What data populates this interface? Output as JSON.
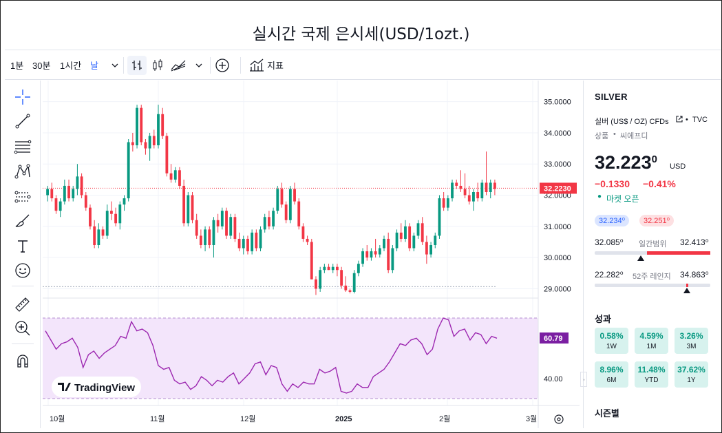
{
  "title": "실시간 국제 은시세(USD/1ozt.)",
  "toolbar": {
    "intervals": [
      "1분",
      "30분",
      "1시간",
      "날"
    ],
    "indicators_label": "지표"
  },
  "left_tools": [
    "crosshair-icon",
    "trendline-icon",
    "fib-icon",
    "pattern-icon",
    "forecast-icon",
    "brush-icon",
    "text-icon",
    "emoji-icon",
    "ruler-icon",
    "zoom-in-icon",
    "magnet-icon"
  ],
  "chart": {
    "price_axis": [
      "35.0000",
      "34.0000",
      "33.0000",
      "32.0000",
      "31.0000",
      "30.0000",
      "29.0000"
    ],
    "current_price_label": "32.2230",
    "rsi_axis": "40.00",
    "rsi_value_label": "60.79",
    "time_axis": [
      "10월",
      "11월",
      "12월",
      "2025",
      "2월",
      "3월"
    ],
    "watermark": "TradingView",
    "colors": {
      "up": "#089981",
      "down": "#f23645",
      "rsi": "#7e22ce",
      "rsi_band": "#f3e5fb",
      "price_line": "#f23645"
    }
  },
  "chart_data": {
    "type": "candlestick",
    "ylim": [
      28.7,
      35.5
    ],
    "ticks": [
      35,
      34,
      33,
      32,
      31,
      30,
      29
    ],
    "last_price": 32.223,
    "ohlc": [
      [
        32.0,
        32.3,
        31.8,
        32.2
      ],
      [
        32.2,
        32.4,
        31.8,
        31.9
      ],
      [
        31.9,
        32.0,
        31.4,
        31.5
      ],
      [
        31.5,
        31.9,
        31.3,
        31.8
      ],
      [
        31.8,
        32.5,
        31.7,
        32.3
      ],
      [
        32.3,
        32.5,
        31.8,
        31.9
      ],
      [
        31.9,
        32.3,
        31.8,
        32.2
      ],
      [
        32.2,
        33.0,
        32.0,
        32.6
      ],
      [
        32.6,
        32.7,
        31.9,
        32.0
      ],
      [
        32.0,
        32.1,
        31.5,
        31.6
      ],
      [
        31.6,
        31.7,
        30.9,
        31.0
      ],
      [
        31.0,
        31.2,
        30.3,
        30.4
      ],
      [
        30.4,
        31.1,
        30.3,
        30.9
      ],
      [
        30.9,
        31.0,
        30.6,
        30.7
      ],
      [
        30.7,
        31.7,
        30.6,
        31.5
      ],
      [
        31.5,
        31.8,
        31.2,
        31.4
      ],
      [
        31.4,
        31.6,
        31.0,
        31.1
      ],
      [
        31.1,
        31.8,
        30.9,
        31.7
      ],
      [
        31.7,
        32.0,
        31.5,
        31.9
      ],
      [
        31.9,
        33.8,
        31.8,
        33.7
      ],
      [
        33.7,
        34.0,
        33.4,
        33.6
      ],
      [
        33.6,
        34.9,
        33.5,
        34.8
      ],
      [
        34.8,
        34.9,
        33.6,
        33.7
      ],
      [
        33.7,
        33.8,
        33.3,
        33.5
      ],
      [
        33.5,
        34.0,
        33.1,
        33.9
      ],
      [
        33.9,
        34.1,
        33.5,
        33.6
      ],
      [
        33.6,
        34.9,
        33.5,
        34.6
      ],
      [
        34.6,
        34.8,
        33.8,
        33.9
      ],
      [
        33.9,
        34.0,
        32.6,
        32.7
      ],
      [
        32.7,
        33.0,
        32.4,
        32.5
      ],
      [
        32.5,
        32.9,
        32.4,
        32.8
      ],
      [
        32.8,
        32.9,
        32.2,
        32.3
      ],
      [
        32.3,
        32.5,
        31.0,
        31.1
      ],
      [
        31.1,
        32.1,
        31.0,
        32.0
      ],
      [
        32.0,
        32.1,
        31.1,
        31.2
      ],
      [
        31.2,
        31.4,
        30.6,
        30.7
      ],
      [
        30.7,
        30.9,
        30.3,
        30.4
      ],
      [
        30.4,
        31.0,
        30.2,
        30.9
      ],
      [
        30.9,
        31.0,
        30.3,
        30.4
      ],
      [
        30.4,
        31.3,
        30.0,
        31.2
      ],
      [
        31.2,
        31.4,
        30.8,
        31.0
      ],
      [
        31.0,
        31.6,
        30.9,
        31.5
      ],
      [
        31.5,
        31.6,
        30.6,
        30.7
      ],
      [
        30.7,
        31.4,
        30.6,
        31.3
      ],
      [
        31.3,
        31.4,
        30.5,
        30.6
      ],
      [
        30.6,
        30.8,
        30.2,
        30.3
      ],
      [
        30.3,
        30.7,
        30.1,
        30.6
      ],
      [
        30.6,
        30.7,
        30.1,
        30.2
      ],
      [
        30.2,
        30.9,
        30.1,
        30.8
      ],
      [
        30.8,
        30.9,
        30.2,
        30.3
      ],
      [
        30.3,
        31.0,
        30.2,
        30.9
      ],
      [
        30.9,
        31.4,
        30.8,
        31.3
      ],
      [
        31.3,
        31.5,
        30.9,
        31.0
      ],
      [
        31.0,
        31.6,
        30.9,
        31.5
      ],
      [
        31.5,
        32.3,
        31.4,
        32.2
      ],
      [
        32.2,
        32.4,
        31.6,
        31.7
      ],
      [
        31.7,
        31.8,
        31.1,
        31.2
      ],
      [
        31.2,
        32.3,
        31.1,
        32.2
      ],
      [
        32.2,
        32.4,
        31.7,
        31.8
      ],
      [
        31.8,
        31.9,
        30.9,
        31.0
      ],
      [
        31.0,
        31.1,
        30.5,
        30.6
      ],
      [
        30.6,
        30.7,
        30.4,
        30.5
      ],
      [
        30.5,
        30.6,
        29.3,
        29.3
      ],
      [
        29.3,
        29.4,
        28.8,
        29.0
      ],
      [
        29.0,
        29.7,
        28.9,
        29.6
      ],
      [
        29.6,
        29.8,
        29.5,
        29.7
      ],
      [
        29.7,
        29.8,
        29.6,
        29.6
      ],
      [
        29.6,
        29.8,
        29.5,
        29.7
      ],
      [
        29.7,
        29.8,
        29.4,
        29.6
      ],
      [
        29.6,
        29.7,
        29.0,
        29.1
      ],
      [
        29.1,
        29.4,
        28.9,
        28.95
      ],
      [
        28.95,
        29.0,
        28.85,
        28.9
      ],
      [
        28.9,
        29.6,
        28.85,
        29.5
      ],
      [
        29.5,
        29.9,
        29.4,
        29.8
      ],
      [
        29.8,
        30.3,
        29.7,
        30.2
      ],
      [
        30.2,
        30.4,
        29.9,
        30.0
      ],
      [
        30.0,
        30.3,
        29.9,
        30.2
      ],
      [
        30.2,
        30.6,
        30.0,
        30.1
      ],
      [
        30.1,
        30.4,
        30.0,
        30.3
      ],
      [
        30.3,
        30.7,
        30.2,
        30.6
      ],
      [
        30.6,
        30.8,
        29.5,
        29.6
      ],
      [
        29.6,
        30.4,
        29.5,
        30.3
      ],
      [
        30.3,
        30.9,
        30.2,
        30.8
      ],
      [
        30.8,
        31.1,
        30.5,
        30.6
      ],
      [
        30.6,
        31.2,
        30.5,
        31.0
      ],
      [
        31.0,
        31.1,
        30.2,
        30.3
      ],
      [
        30.3,
        30.8,
        30.2,
        30.7
      ],
      [
        30.7,
        31.2,
        30.6,
        31.1
      ],
      [
        31.1,
        31.3,
        30.4,
        30.5
      ],
      [
        30.5,
        30.7,
        29.8,
        30.1
      ],
      [
        30.1,
        30.5,
        30.0,
        30.4
      ],
      [
        30.4,
        30.8,
        30.3,
        30.7
      ],
      [
        30.7,
        32.0,
        30.6,
        31.9
      ],
      [
        31.9,
        32.1,
        31.5,
        31.6
      ],
      [
        31.6,
        32.0,
        31.5,
        31.9
      ],
      [
        31.9,
        32.5,
        31.8,
        32.4
      ],
      [
        32.4,
        32.5,
        32.2,
        32.3
      ],
      [
        32.3,
        32.8,
        32.1,
        32.2
      ],
      [
        32.2,
        32.7,
        31.9,
        32.0
      ],
      [
        32.0,
        32.3,
        31.7,
        31.8
      ],
      [
        31.8,
        32.2,
        31.5,
        32.1
      ],
      [
        32.1,
        32.4,
        31.8,
        31.9
      ],
      [
        31.9,
        32.5,
        31.8,
        32.4
      ],
      [
        32.4,
        33.4,
        32.0,
        32.1
      ],
      [
        32.1,
        32.5,
        31.9,
        32.4
      ],
      [
        32.4,
        32.5,
        32.0,
        32.2
      ]
    ],
    "rsi": [
      65,
      60,
      55,
      58,
      59,
      61,
      56,
      45,
      52,
      54,
      50,
      53,
      55,
      57,
      62,
      61,
      70,
      65,
      66,
      64,
      57,
      46,
      44,
      45,
      38,
      36,
      37,
      33,
      35,
      40,
      38,
      35,
      38,
      37,
      40,
      42,
      36,
      39,
      42,
      47,
      48,
      41,
      46,
      45,
      36,
      32,
      36,
      34,
      37,
      36,
      36,
      44,
      42,
      43,
      45,
      32,
      31,
      32,
      36,
      34,
      34,
      40,
      42,
      44,
      48,
      53,
      58,
      57,
      60,
      61,
      58,
      52,
      55,
      66,
      72,
      71,
      62,
      65,
      66,
      60,
      64,
      63,
      58,
      62,
      61
    ],
    "rsi_value": 60.79,
    "range_day": {
      "low": "32.085⁰",
      "high": "32.413⁰",
      "position": 0.4
    },
    "range_52w": {
      "low": "22.282⁰",
      "high": "34.863⁰",
      "position": 0.79
    }
  },
  "panel": {
    "symbol": "SILVER",
    "description": "실버 (US$ / OZ) CFDs",
    "exchange": "TVC",
    "category": "상품",
    "sub_category": "씨에프디",
    "price_main": "32.223",
    "price_sup": "0",
    "currency": "USD",
    "change": "−0.1330",
    "change_pct": "−0.41%",
    "market_status": "마켓 오픈",
    "bid": "32.234⁰",
    "ask": "32.251⁰",
    "day_low": "32.085⁰",
    "day_label": "일간범위",
    "day_high": "32.413⁰",
    "w52_low": "22.282⁰",
    "w52_label": "52주 레인지",
    "w52_high": "34.863⁰",
    "performance_title": "성과",
    "performance": [
      {
        "value": "0.58%",
        "period": "1W"
      },
      {
        "value": "4.59%",
        "period": "1M"
      },
      {
        "value": "3.26%",
        "period": "3M"
      },
      {
        "value": "8.96%",
        "period": "6M"
      },
      {
        "value": "11.48%",
        "period": "YTD"
      },
      {
        "value": "37.62%",
        "period": "1Y"
      }
    ],
    "seasonal_title": "시즌별"
  }
}
